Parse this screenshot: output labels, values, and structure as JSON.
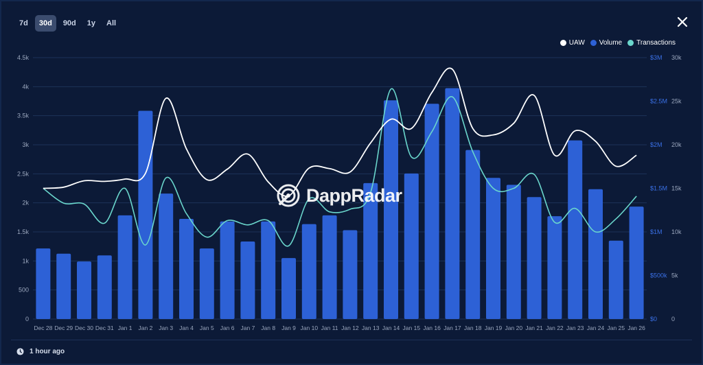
{
  "range_tabs": [
    {
      "label": "7d",
      "active": false
    },
    {
      "label": "30d",
      "active": true
    },
    {
      "label": "90d",
      "active": false
    },
    {
      "label": "1y",
      "active": false
    },
    {
      "label": "All",
      "active": false
    }
  ],
  "footer": {
    "updated": "1 hour ago"
  },
  "watermark": "DappRadar",
  "colors": {
    "uaw": "#ffffff",
    "volume": "#2d61d6",
    "transactions": "#6ad6cc",
    "background": "#0c1a37",
    "grid": "#1d3358"
  },
  "chart_data": {
    "type": "bar",
    "categories": [
      "Dec 28",
      "Dec 29",
      "Dec 30",
      "Dec 31",
      "Jan 1",
      "Jan 2",
      "Jan 3",
      "Jan 4",
      "Jan 5",
      "Jan 6",
      "Jan 7",
      "Jan 8",
      "Jan 9",
      "Jan 10",
      "Jan 11",
      "Jan 12",
      "Jan 13",
      "Jan 14",
      "Jan 15",
      "Jan 16",
      "Jan 17",
      "Jan 18",
      "Jan 19",
      "Jan 20",
      "Jan 21",
      "Jan 22",
      "Jan 23",
      "Jan 24",
      "Jan 25",
      "Jan 26"
    ],
    "series": [
      {
        "name": "UAW",
        "type": "line",
        "axis": "left",
        "values": [
          2250,
          2270,
          2380,
          2370,
          2410,
          2510,
          3800,
          2930,
          2400,
          2580,
          2840,
          2360,
          2120,
          2600,
          2590,
          2530,
          3030,
          3440,
          3280,
          3900,
          4300,
          3280,
          3170,
          3370,
          3850,
          2820,
          3240,
          3060,
          2630,
          2820
        ]
      },
      {
        "name": "Volume",
        "type": "bar",
        "axis": "right_usd",
        "values": [
          810000,
          750000,
          660000,
          730000,
          1190000,
          2390000,
          1440000,
          1150000,
          810000,
          1120000,
          890000,
          1120000,
          700000,
          1090000,
          1190000,
          1020000,
          1560000,
          2510000,
          1670000,
          2470000,
          2650000,
          1940000,
          1620000,
          1540000,
          1400000,
          1180000,
          2050000,
          1490000,
          900000,
          1290000
        ]
      },
      {
        "name": "Transactions",
        "type": "line",
        "axis": "right_count",
        "values": [
          15000,
          13300,
          13200,
          11000,
          15000,
          8500,
          16200,
          12100,
          9400,
          11300,
          10800,
          11300,
          8400,
          13800,
          12300,
          12600,
          14500,
          26400,
          18600,
          21500,
          25500,
          19200,
          15000,
          15000,
          16600,
          11100,
          12700,
          10000,
          11500,
          14100
        ]
      }
    ],
    "axes": {
      "left": {
        "ticks": [
          "0",
          "500",
          "1k",
          "1.5k",
          "2k",
          "2.5k",
          "3k",
          "3.5k",
          "4k",
          "4.5k"
        ],
        "min": 0,
        "max": 4500
      },
      "right_usd": {
        "ticks": [
          "$0",
          "$500k",
          "$1M",
          "$1.5M",
          "$2M",
          "$2.5M",
          "$3M"
        ],
        "min": 0,
        "max": 3000000
      },
      "right_count": {
        "ticks": [
          "0",
          "5k",
          "10k",
          "15k",
          "20k",
          "25k",
          "30k"
        ],
        "min": 0,
        "max": 30000
      }
    },
    "grid": true,
    "legend_position": "top-right"
  }
}
